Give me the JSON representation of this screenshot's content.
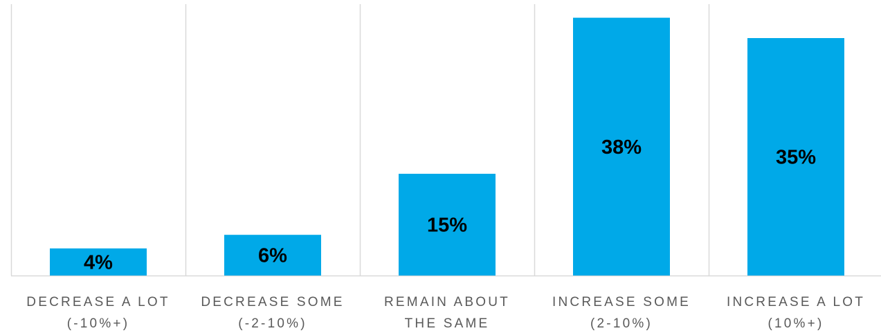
{
  "chart_data": {
    "type": "bar",
    "categories": [
      [
        "DECREASE A LOT",
        "(-10%+)"
      ],
      [
        "DECREASE SOME",
        "(-2-10%)"
      ],
      [
        "REMAIN ABOUT",
        "THE SAME"
      ],
      [
        "INCREASE SOME",
        "(2-10%)"
      ],
      [
        "INCREASE A LOT",
        "(10%+)"
      ]
    ],
    "values": [
      4,
      6,
      15,
      38,
      35
    ],
    "data_labels": [
      "4%",
      "6%",
      "15%",
      "38%",
      "35%"
    ],
    "unit": "%",
    "title": "",
    "xlabel": "",
    "ylabel": "",
    "ylim": [
      0,
      40
    ],
    "grid": "vertical category separators",
    "legend": "none",
    "colors": {
      "bar": "#00A9E8",
      "grid": "#D9D9D9",
      "axis_text": "#595959",
      "data_label": "#000000"
    }
  }
}
